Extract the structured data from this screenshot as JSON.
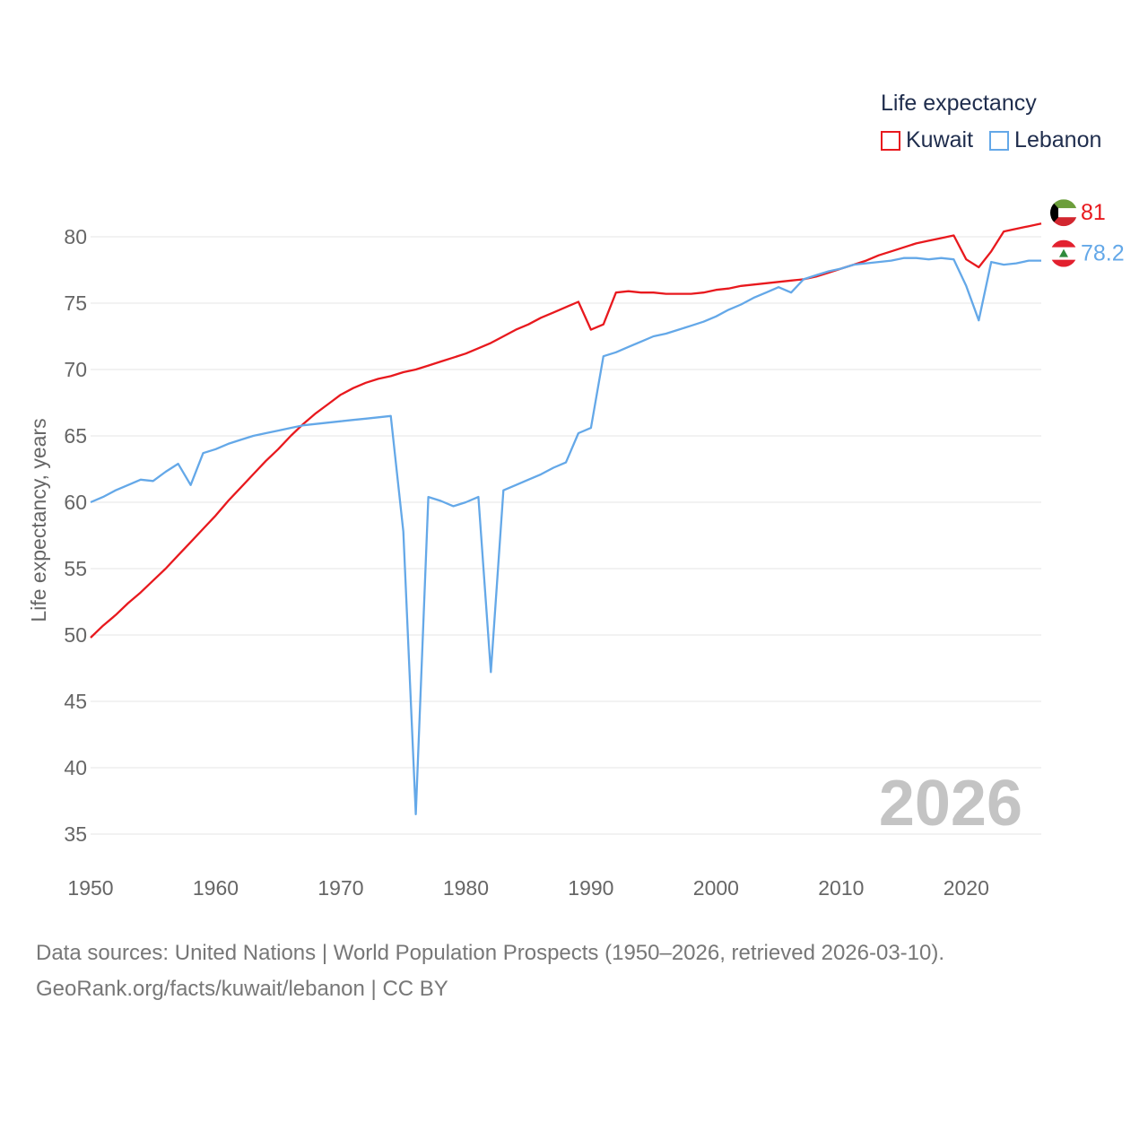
{
  "legend": {
    "title": "Life expectancy",
    "items": [
      {
        "label": "Kuwait",
        "color": "#e8191e"
      },
      {
        "label": "Lebanon",
        "color": "#64a8e8"
      }
    ]
  },
  "footer": {
    "line1": "Data sources: United Nations | World Population Prospects (1950–2026, retrieved 2026-03-10).",
    "line2": "GeoRank.org/facts/kuwait/lebanon | CC BY"
  },
  "chart_data": {
    "type": "line",
    "title": "Life expectancy",
    "ylabel": "Life expectancy, years",
    "xlabel": "",
    "xlim": [
      1950,
      2026
    ],
    "ylim": [
      35,
      82
    ],
    "x_ticks": [
      1950,
      1960,
      1970,
      1980,
      1990,
      2000,
      2010,
      2020
    ],
    "y_ticks": [
      35,
      40,
      45,
      50,
      55,
      60,
      65,
      70,
      75,
      80
    ],
    "watermark_year": "2026",
    "series": [
      {
        "name": "Kuwait",
        "color": "#e8191e",
        "end_label": "81",
        "flag": "kuwait-flag",
        "points": [
          [
            1950,
            49.8
          ],
          [
            1951,
            50.7
          ],
          [
            1952,
            51.5
          ],
          [
            1953,
            52.4
          ],
          [
            1954,
            53.2
          ],
          [
            1955,
            54.1
          ],
          [
            1956,
            55.0
          ],
          [
            1957,
            56.0
          ],
          [
            1958,
            57.0
          ],
          [
            1959,
            58.0
          ],
          [
            1960,
            59.0
          ],
          [
            1961,
            60.1
          ],
          [
            1962,
            61.1
          ],
          [
            1963,
            62.1
          ],
          [
            1964,
            63.1
          ],
          [
            1965,
            64.0
          ],
          [
            1966,
            65.0
          ],
          [
            1967,
            65.9
          ],
          [
            1968,
            66.7
          ],
          [
            1969,
            67.4
          ],
          [
            1970,
            68.1
          ],
          [
            1971,
            68.6
          ],
          [
            1972,
            69.0
          ],
          [
            1973,
            69.3
          ],
          [
            1974,
            69.5
          ],
          [
            1975,
            69.8
          ],
          [
            1976,
            70.0
          ],
          [
            1977,
            70.3
          ],
          [
            1978,
            70.6
          ],
          [
            1979,
            70.9
          ],
          [
            1980,
            71.2
          ],
          [
            1981,
            71.6
          ],
          [
            1982,
            72.0
          ],
          [
            1983,
            72.5
          ],
          [
            1984,
            73.0
          ],
          [
            1985,
            73.4
          ],
          [
            1986,
            73.9
          ],
          [
            1987,
            74.3
          ],
          [
            1988,
            74.7
          ],
          [
            1989,
            75.1
          ],
          [
            1990,
            73.0
          ],
          [
            1991,
            73.4
          ],
          [
            1992,
            75.8
          ],
          [
            1993,
            75.9
          ],
          [
            1994,
            75.8
          ],
          [
            1995,
            75.8
          ],
          [
            1996,
            75.7
          ],
          [
            1997,
            75.7
          ],
          [
            1998,
            75.7
          ],
          [
            1999,
            75.8
          ],
          [
            2000,
            76.0
          ],
          [
            2001,
            76.1
          ],
          [
            2002,
            76.3
          ],
          [
            2003,
            76.4
          ],
          [
            2004,
            76.5
          ],
          [
            2005,
            76.6
          ],
          [
            2006,
            76.7
          ],
          [
            2007,
            76.8
          ],
          [
            2008,
            77.0
          ],
          [
            2009,
            77.3
          ],
          [
            2010,
            77.6
          ],
          [
            2011,
            77.9
          ],
          [
            2012,
            78.2
          ],
          [
            2013,
            78.6
          ],
          [
            2014,
            78.9
          ],
          [
            2015,
            79.2
          ],
          [
            2016,
            79.5
          ],
          [
            2017,
            79.7
          ],
          [
            2018,
            79.9
          ],
          [
            2019,
            80.1
          ],
          [
            2020,
            78.3
          ],
          [
            2021,
            77.7
          ],
          [
            2022,
            78.9
          ],
          [
            2023,
            80.4
          ],
          [
            2024,
            80.6
          ],
          [
            2025,
            80.8
          ],
          [
            2026,
            81.0
          ]
        ]
      },
      {
        "name": "Lebanon",
        "color": "#64a8e8",
        "end_label": "78.2",
        "flag": "lebanon-flag",
        "points": [
          [
            1950,
            60.0
          ],
          [
            1951,
            60.4
          ],
          [
            1952,
            60.9
          ],
          [
            1953,
            61.3
          ],
          [
            1954,
            61.7
          ],
          [
            1955,
            61.6
          ],
          [
            1956,
            62.3
          ],
          [
            1957,
            62.9
          ],
          [
            1958,
            61.3
          ],
          [
            1959,
            63.7
          ],
          [
            1960,
            64.0
          ],
          [
            1961,
            64.4
          ],
          [
            1962,
            64.7
          ],
          [
            1963,
            65.0
          ],
          [
            1964,
            65.2
          ],
          [
            1965,
            65.4
          ],
          [
            1966,
            65.6
          ],
          [
            1967,
            65.8
          ],
          [
            1968,
            65.9
          ],
          [
            1969,
            66.0
          ],
          [
            1970,
            66.1
          ],
          [
            1971,
            66.2
          ],
          [
            1972,
            66.3
          ],
          [
            1973,
            66.4
          ],
          [
            1974,
            66.5
          ],
          [
            1975,
            57.8
          ],
          [
            1976,
            36.5
          ],
          [
            1977,
            60.4
          ],
          [
            1978,
            60.1
          ],
          [
            1979,
            59.7
          ],
          [
            1980,
            60.0
          ],
          [
            1981,
            60.4
          ],
          [
            1982,
            47.2
          ],
          [
            1983,
            60.9
          ],
          [
            1984,
            61.3
          ],
          [
            1985,
            61.7
          ],
          [
            1986,
            62.1
          ],
          [
            1987,
            62.6
          ],
          [
            1988,
            63.0
          ],
          [
            1989,
            65.2
          ],
          [
            1990,
            65.6
          ],
          [
            1991,
            71.0
          ],
          [
            1992,
            71.3
          ],
          [
            1993,
            71.7
          ],
          [
            1994,
            72.1
          ],
          [
            1995,
            72.5
          ],
          [
            1996,
            72.7
          ],
          [
            1997,
            73.0
          ],
          [
            1998,
            73.3
          ],
          [
            1999,
            73.6
          ],
          [
            2000,
            74.0
          ],
          [
            2001,
            74.5
          ],
          [
            2002,
            74.9
          ],
          [
            2003,
            75.4
          ],
          [
            2004,
            75.8
          ],
          [
            2005,
            76.2
          ],
          [
            2006,
            75.8
          ],
          [
            2007,
            76.8
          ],
          [
            2008,
            77.1
          ],
          [
            2009,
            77.4
          ],
          [
            2010,
            77.6
          ],
          [
            2011,
            77.9
          ],
          [
            2012,
            78.0
          ],
          [
            2013,
            78.1
          ],
          [
            2014,
            78.2
          ],
          [
            2015,
            78.4
          ],
          [
            2016,
            78.4
          ],
          [
            2017,
            78.3
          ],
          [
            2018,
            78.4
          ],
          [
            2019,
            78.3
          ],
          [
            2020,
            76.3
          ],
          [
            2021,
            73.7
          ],
          [
            2022,
            78.1
          ],
          [
            2023,
            77.9
          ],
          [
            2024,
            78.0
          ],
          [
            2025,
            78.2
          ],
          [
            2026,
            78.2
          ]
        ]
      }
    ]
  }
}
